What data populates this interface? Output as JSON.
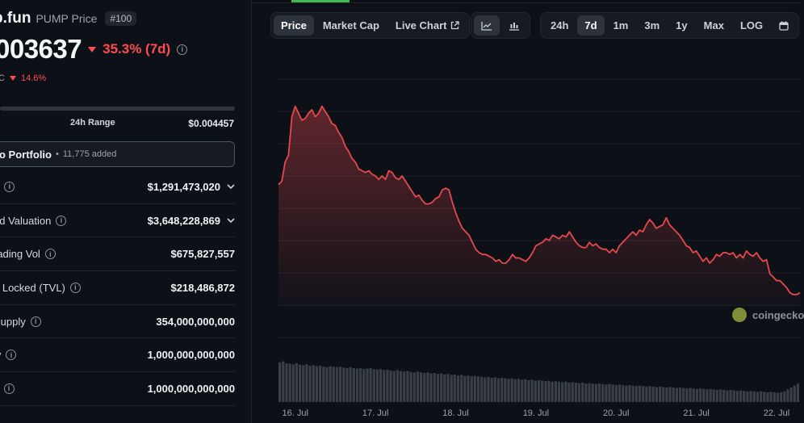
{
  "coin": {
    "name": "p.fun",
    "subtitle": "PUMP Price",
    "rank": "#100",
    "price": "003637",
    "change_7d": "35.3% (7d)",
    "btc_unit": "C",
    "btc_change": "14.6%"
  },
  "range": {
    "label": "24h Range",
    "high": "$0.004457"
  },
  "portfolio": {
    "label": "o Portfolio",
    "dot": "•",
    "added": "11,775 added"
  },
  "stats": [
    {
      "label": "p",
      "value": "$1,291,473,020",
      "expandable": true
    },
    {
      "label": "ed Valuation",
      "value": "$3,648,228,869",
      "expandable": true
    },
    {
      "label": "rading Vol",
      "value": "$675,827,557",
      "expandable": false
    },
    {
      "label": "e Locked (TVL)",
      "value": "$218,486,872",
      "expandable": false
    },
    {
      "label": "Supply",
      "value": "354,000,000,000",
      "expandable": false
    },
    {
      "label": "ly",
      "value": "1,000,000,000,000",
      "expandable": false
    },
    {
      "label": "y",
      "value": "1,000,000,000,000",
      "expandable": false
    }
  ],
  "toolbar": {
    "view_tabs": [
      "Price",
      "Market Cap",
      "Live Chart"
    ],
    "active_view": "Price",
    "chart_types": [
      "line-chart-icon",
      "candlestick-icon"
    ],
    "active_chart_type": "line-chart-icon",
    "ranges": [
      "24h",
      "7d",
      "1m",
      "3m",
      "1y",
      "Max",
      "LOG"
    ],
    "active_range": "7d",
    "calendar_icon": "calendar-icon",
    "external_icon": "external-link-icon"
  },
  "watermark": "coingecko",
  "colors": {
    "line": "#e5484d",
    "negative": "#ff4d4f",
    "accent": "#3fb950",
    "volume": "#3a3f47"
  },
  "chart_data": {
    "type": "line",
    "x_ticks": [
      "16. Jul",
      "17. Jul",
      "18. Jul",
      "19. Jul",
      "20. Jul",
      "21. Jul",
      "22. Jul"
    ],
    "x_tick_index": [
      5,
      29,
      53,
      77,
      101,
      125,
      149
    ],
    "price": [
      0.45,
      0.47,
      0.58,
      0.62,
      0.84,
      0.9,
      0.86,
      0.82,
      0.83,
      0.86,
      0.88,
      0.84,
      0.86,
      0.9,
      0.87,
      0.84,
      0.8,
      0.79,
      0.75,
      0.72,
      0.67,
      0.64,
      0.6,
      0.58,
      0.54,
      0.53,
      0.52,
      0.53,
      0.51,
      0.5,
      0.48,
      0.5,
      0.48,
      0.53,
      0.52,
      0.49,
      0.48,
      0.5,
      0.47,
      0.44,
      0.41,
      0.38,
      0.39,
      0.36,
      0.34,
      0.34,
      0.35,
      0.37,
      0.38,
      0.42,
      0.43,
      0.42,
      0.35,
      0.29,
      0.24,
      0.2,
      0.18,
      0.16,
      0.12,
      0.08,
      0.06,
      0.05,
      0.05,
      0.04,
      0.03,
      0.01,
      0.02,
      0.0,
      0.0,
      0.02,
      0.05,
      0.03,
      0.03,
      0.02,
      0.01,
      0.03,
      0.06,
      0.1,
      0.11,
      0.12,
      0.14,
      0.13,
      0.16,
      0.15,
      0.14,
      0.16,
      0.15,
      0.18,
      0.15,
      0.12,
      0.1,
      0.09,
      0.09,
      0.12,
      0.1,
      0.11,
      0.09,
      0.08,
      0.08,
      0.06,
      0.08,
      0.06,
      0.1,
      0.12,
      0.14,
      0.16,
      0.18,
      0.16,
      0.19,
      0.18,
      0.22,
      0.25,
      0.23,
      0.2,
      0.21,
      0.22,
      0.26,
      0.22,
      0.2,
      0.18,
      0.16,
      0.13,
      0.1,
      0.09,
      0.06,
      0.07,
      0.04,
      0.01,
      0.03,
      0.0,
      0.02,
      0.05,
      0.04,
      0.06,
      0.06,
      0.05,
      0.06,
      0.03,
      0.05,
      0.03,
      0.07,
      0.05,
      0.04,
      0.06,
      0.03,
      0.01,
      0.02,
      -0.06,
      -0.08,
      -0.1,
      -0.1,
      -0.12,
      -0.14,
      -0.17,
      -0.18,
      -0.18,
      -0.17
    ],
    "volume": [
      0.82,
      0.84,
      0.8,
      0.79,
      0.78,
      0.8,
      0.77,
      0.76,
      0.78,
      0.75,
      0.76,
      0.74,
      0.75,
      0.73,
      0.72,
      0.74,
      0.73,
      0.72,
      0.73,
      0.71,
      0.7,
      0.72,
      0.7,
      0.69,
      0.7,
      0.68,
      0.69,
      0.7,
      0.68,
      0.67,
      0.68,
      0.66,
      0.67,
      0.65,
      0.64,
      0.66,
      0.64,
      0.63,
      0.64,
      0.62,
      0.61,
      0.63,
      0.61,
      0.6,
      0.61,
      0.59,
      0.6,
      0.58,
      0.59,
      0.57,
      0.58,
      0.56,
      0.57,
      0.55,
      0.56,
      0.54,
      0.55,
      0.53,
      0.54,
      0.53,
      0.52,
      0.51,
      0.52,
      0.5,
      0.51,
      0.49,
      0.5,
      0.49,
      0.48,
      0.49,
      0.47,
      0.48,
      0.46,
      0.47,
      0.45,
      0.46,
      0.44,
      0.45,
      0.44,
      0.43,
      0.44,
      0.42,
      0.43,
      0.42,
      0.41,
      0.42,
      0.4,
      0.41,
      0.4,
      0.39,
      0.4,
      0.38,
      0.39,
      0.38,
      0.37,
      0.38,
      0.37,
      0.36,
      0.37,
      0.36,
      0.35,
      0.36,
      0.35,
      0.34,
      0.35,
      0.34,
      0.33,
      0.34,
      0.33,
      0.32,
      0.33,
      0.32,
      0.31,
      0.32,
      0.31,
      0.3,
      0.31,
      0.3,
      0.29,
      0.3,
      0.29,
      0.28,
      0.29,
      0.28,
      0.27,
      0.28,
      0.27,
      0.26,
      0.27,
      0.26,
      0.25,
      0.26,
      0.25,
      0.24,
      0.25,
      0.24,
      0.23,
      0.24,
      0.23,
      0.22,
      0.23,
      0.22,
      0.21,
      0.22,
      0.21,
      0.2,
      0.21,
      0.2,
      0.19,
      0.2,
      0.22,
      0.26,
      0.3,
      0.34,
      0.38
    ]
  }
}
